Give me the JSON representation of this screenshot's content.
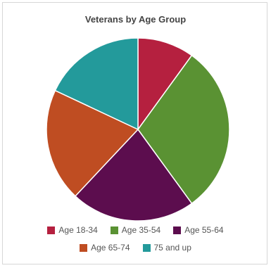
{
  "chart_data": {
    "type": "pie",
    "title": "Veterans by Age Group",
    "categories": [
      "Age 18-34",
      "Age 35-54",
      "Age 55-64",
      "Age 65-74",
      "75 and up"
    ],
    "values": [
      10,
      30,
      22,
      20,
      18
    ],
    "unit": "%",
    "colors": [
      "#b5203f",
      "#5a9233",
      "#5c0d4e",
      "#bf4d22",
      "#239a9b"
    ],
    "legend": "bottom",
    "start_angle_deg": 0,
    "direction": "clockwise"
  }
}
